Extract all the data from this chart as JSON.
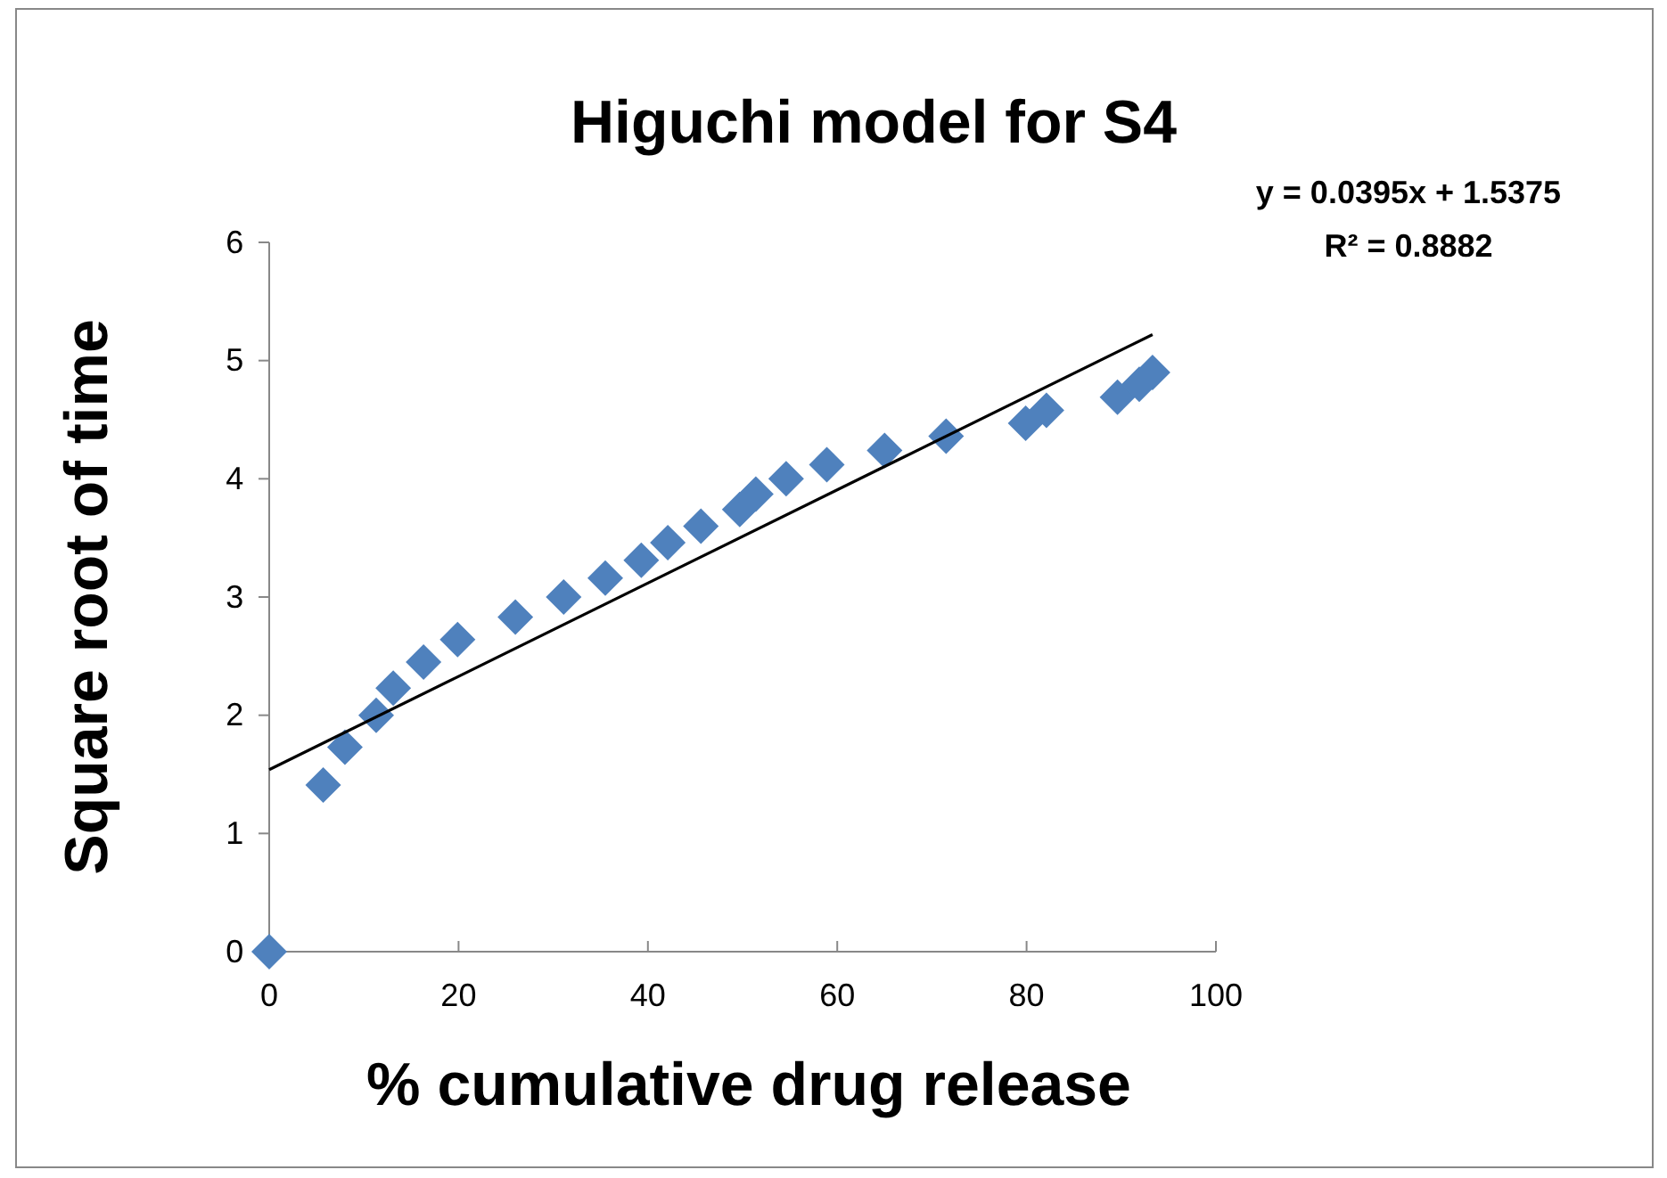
{
  "chart_data": {
    "type": "scatter",
    "title": "Higuchi model for S4",
    "xlabel": "% cumulative drug release",
    "ylabel": "Square root of time",
    "annotations": [
      "y = 0.0395x + 1.5375",
      "R² = 0.8882"
    ],
    "xlim": [
      0,
      100
    ],
    "xticks": [
      0,
      20,
      40,
      60,
      80,
      100
    ],
    "ylim": [
      0,
      6
    ],
    "yticks": [
      0,
      1,
      2,
      3,
      4,
      5,
      6
    ],
    "grid": false,
    "marker": "diamond",
    "series": [
      {
        "color": "#4f81bd",
        "x": [
          0,
          5.7,
          8.0,
          11.3,
          13.1,
          16.3,
          19.9,
          26.0,
          31.1,
          35.5,
          39.3,
          42.1,
          45.6,
          49.7,
          51.4,
          54.6,
          58.9,
          65.0,
          71.5,
          79.9,
          82.1,
          89.6,
          91.9,
          93.3
        ],
        "values": [
          0,
          1.41,
          1.73,
          2.0,
          2.23,
          2.45,
          2.64,
          2.83,
          3.0,
          3.16,
          3.31,
          3.46,
          3.6,
          3.74,
          3.87,
          4.0,
          4.12,
          4.24,
          4.36,
          4.47,
          4.58,
          4.69,
          4.8,
          4.9
        ]
      },
      {
        "type": "line",
        "color": "#000000",
        "line_style": "solid",
        "marker": "none",
        "x": [
          0,
          93.3
        ],
        "values": [
          1.54,
          5.22
        ]
      }
    ]
  }
}
